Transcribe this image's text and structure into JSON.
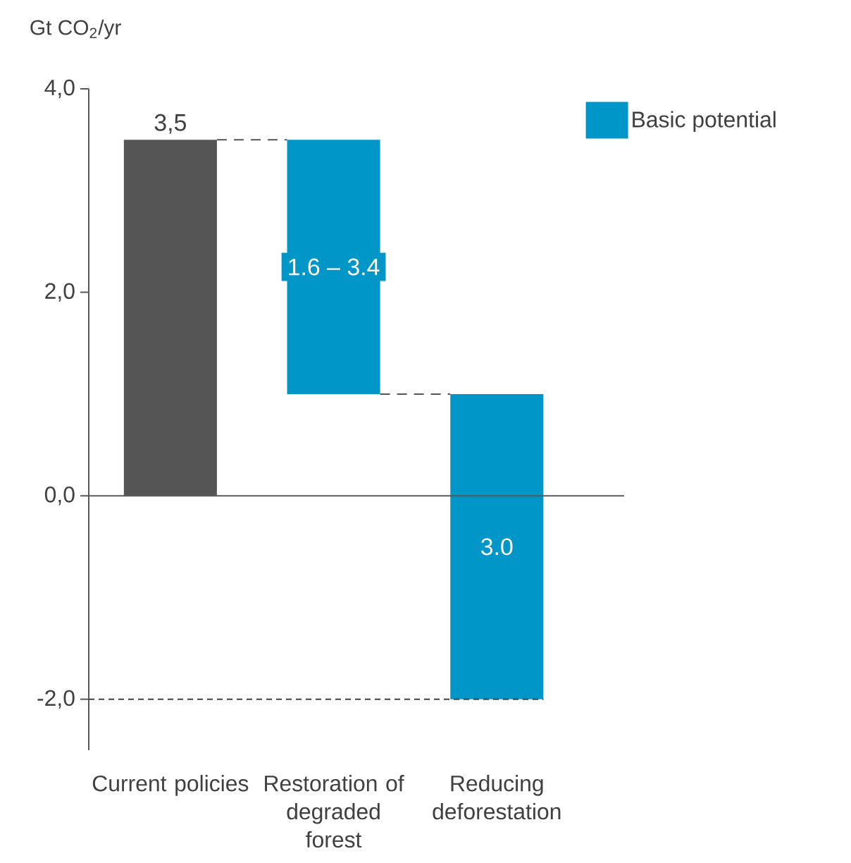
{
  "chart_data": {
    "type": "bar",
    "ylabel": "Gt CO$_{2}$/yr",
    "categories": [
      "Current policies",
      "Restoration of degraded forest",
      "Reducing deforestation"
    ],
    "series": [
      {
        "color": "#555555",
        "values": [
          3.5,
          null,
          null
        ],
        "base": [
          0,
          null,
          null
        ],
        "value_labels": [
          "3,5",
          null,
          null
        ]
      },
      {
        "name": "Basic potential",
        "color": "#0096c8",
        "values": [
          null,
          2.5,
          3.0
        ],
        "base": [
          null,
          1.0,
          -2.0
        ],
        "value_labels": [
          null,
          null,
          "3.0"
        ]
      }
    ],
    "ylim": [
      -2.5,
      4.0
    ],
    "yticks": [
      {
        "value": -2,
        "label": "-2,0"
      },
      {
        "value": 0,
        "label": "0,0"
      },
      {
        "value": 2,
        "label": "2,0"
      },
      {
        "value": 4,
        "label": "4,0"
      }
    ],
    "ref_lines": [
      {
        "axis": "y",
        "value": 3.5,
        "color": "#555555",
        "line_style": "dashed"
      },
      {
        "axis": "y",
        "value": 1.0,
        "color": "#555555",
        "line_style": "dashed"
      },
      {
        "axis": "y",
        "value": -2,
        "color": "#404040",
        "line_style": "dotted"
      }
    ],
    "annotations": [
      "1.6 – 3.4"
    ],
    "legend": "top right"
  }
}
